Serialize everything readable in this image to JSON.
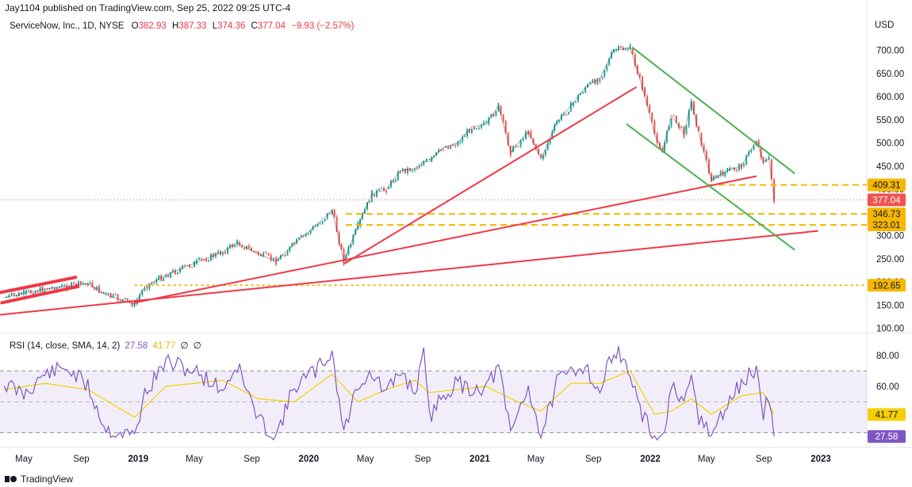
{
  "header": {
    "published": "Jay1104 published on TradingView.com, Sep 25, 2022 09:25 UTC-4"
  },
  "legend": {
    "symbol": "ServiceNow, Inc., 1D, NYSE",
    "open_label": "O",
    "open": "382.93",
    "high_label": "H",
    "high": "387.33",
    "low_label": "L",
    "low": "374.36",
    "close_label": "C",
    "close": "377.04",
    "change": "−9.93 (−2.57%)"
  },
  "rsi_legend": {
    "label": "RSI (14, close, SMA, 14, 2)",
    "rsi": "27.58",
    "sma": "41.77",
    "extra1": "∅",
    "extra2": "∅"
  },
  "footer": {
    "brand": "TradingView"
  },
  "colors": {
    "up": "#26a69a",
    "down": "#ef5350",
    "trendline": "#f23645",
    "channel": "#4caf50",
    "level": "#f5b800",
    "rsi": "#7e57c2",
    "rsi_sma": "#f5d000",
    "rsi_band": "#7e57c2"
  },
  "chart_data": [
    {
      "type": "line",
      "title": "ServiceNow, Inc., 1D, NYSE",
      "currency": "USD",
      "x_ticks": [
        "May",
        "Sep",
        "2019",
        "May",
        "Sep",
        "2020",
        "May",
        "Sep",
        "2021",
        "May",
        "Sep",
        "2022",
        "May",
        "Sep",
        "2023"
      ],
      "y_ticks": [
        100,
        150,
        200,
        250,
        300,
        350,
        400,
        450,
        500,
        550,
        600,
        650,
        700
      ],
      "ylim": [
        80,
        730
      ],
      "grid": false,
      "series": [
        {
          "name": "NOW",
          "dates": [
            "2018-03-20",
            "2018-05-01",
            "2018-06-15",
            "2018-08-01",
            "2018-09-15",
            "2018-10-24",
            "2018-12-24",
            "2019-01-15",
            "2019-03-01",
            "2019-05-01",
            "2019-07-01",
            "2019-08-01",
            "2019-09-15",
            "2019-10-23",
            "2019-12-01",
            "2020-01-15",
            "2020-02-20",
            "2020-03-16",
            "2020-04-15",
            "2020-05-15",
            "2020-06-15",
            "2020-07-15",
            "2020-08-15",
            "2020-09-03",
            "2020-09-15",
            "2020-10-15",
            "2020-11-15",
            "2020-12-15",
            "2021-01-15",
            "2021-02-10",
            "2021-03-08",
            "2021-04-15",
            "2021-05-12",
            "2021-06-15",
            "2021-07-15",
            "2021-08-15",
            "2021-09-15",
            "2021-10-15",
            "2021-11-19",
            "2021-12-15",
            "2022-01-10",
            "2022-01-27",
            "2022-02-15",
            "2022-03-14",
            "2022-03-30",
            "2022-04-15",
            "2022-05-12",
            "2022-06-15",
            "2022-07-15",
            "2022-08-16",
            "2022-08-31",
            "2022-09-12",
            "2022-09-23"
          ],
          "close": [
            166,
            175,
            185,
            190,
            197,
            172,
            152,
            190,
            215,
            240,
            265,
            285,
            260,
            245,
            282,
            320,
            355,
            245,
            320,
            390,
            400,
            440,
            445,
            460,
            460,
            490,
            500,
            535,
            540,
            580,
            480,
            525,
            465,
            545,
            580,
            620,
            640,
            700,
            705,
            620,
            520,
            480,
            560,
            520,
            590,
            520,
            420,
            440,
            450,
            505,
            460,
            465,
            377
          ]
        }
      ],
      "price_labels": [
        {
          "label": "409.31",
          "value": 409.31,
          "style": "level"
        },
        {
          "label": "377.04",
          "value": 377.04,
          "style": "last"
        },
        {
          "label": "346.73",
          "value": 346.73,
          "style": "level"
        },
        {
          "label": "323.01",
          "value": 323.01,
          "style": "level"
        },
        {
          "label": "192.65",
          "value": 192.65,
          "style": "level"
        }
      ],
      "horizontal_levels": [
        409.31,
        346.73,
        323.01,
        192.65
      ],
      "trendlines": [
        {
          "color": "red",
          "from": [
            "2018-03-01",
            175
          ],
          "to": [
            "2018-08-20",
            210
          ]
        },
        {
          "color": "red",
          "from": [
            "2018-03-15",
            155
          ],
          "to": [
            "2018-08-25",
            190
          ]
        },
        {
          "color": "red",
          "from": [
            "2018-03-01",
            128
          ],
          "to": [
            "2022-12-25",
            310
          ]
        },
        {
          "color": "red",
          "from": [
            "2018-12-24",
            155
          ],
          "to": [
            "2022-08-15",
            428
          ]
        },
        {
          "color": "red",
          "from": [
            "2020-03-18",
            240
          ],
          "to": [
            "2021-12-01",
            620
          ]
        },
        {
          "color": "green",
          "from": [
            "2021-11-25",
            705
          ],
          "to": [
            "2022-11-05",
            435
          ]
        },
        {
          "color": "green",
          "from": [
            "2021-11-12",
            540
          ],
          "to": [
            "2022-11-05",
            270
          ]
        }
      ]
    },
    {
      "type": "line",
      "title": "RSI (14, close, SMA, 14, 2)",
      "y_ticks": [
        80,
        60
      ],
      "ylim": [
        16,
        92
      ],
      "bands": [
        70,
        50,
        30
      ],
      "price_labels": [
        {
          "label": "41.77",
          "value": 41.77,
          "style": "sma"
        },
        {
          "label": "27.58",
          "value": 27.58,
          "style": "rsi"
        }
      ],
      "series": [
        {
          "name": "RSI",
          "dates": [
            "2018-03-20",
            "2018-05-01",
            "2018-06-15",
            "2018-08-01",
            "2018-09-15",
            "2018-10-24",
            "2018-12-24",
            "2019-01-15",
            "2019-03-01",
            "2019-05-01",
            "2019-07-01",
            "2019-08-01",
            "2019-09-15",
            "2019-10-23",
            "2019-12-01",
            "2020-01-15",
            "2020-02-20",
            "2020-03-16",
            "2020-04-15",
            "2020-05-15",
            "2020-06-15",
            "2020-07-15",
            "2020-08-15",
            "2020-09-03",
            "2020-09-15",
            "2020-10-15",
            "2020-11-15",
            "2020-12-15",
            "2021-01-15",
            "2021-02-10",
            "2021-03-08",
            "2021-04-15",
            "2021-05-12",
            "2021-06-15",
            "2021-07-15",
            "2021-08-15",
            "2021-09-15",
            "2021-10-15",
            "2021-11-19",
            "2021-12-15",
            "2022-01-10",
            "2022-01-27",
            "2022-02-15",
            "2022-03-14",
            "2022-03-30",
            "2022-04-15",
            "2022-05-12",
            "2022-06-15",
            "2022-07-15",
            "2022-08-16",
            "2022-08-31",
            "2022-09-12",
            "2022-09-23"
          ],
          "values": [
            62,
            55,
            68,
            72,
            60,
            32,
            28,
            55,
            76,
            70,
            58,
            74,
            38,
            28,
            60,
            70,
            82,
            30,
            62,
            68,
            55,
            70,
            56,
            80,
            40,
            55,
            62,
            58,
            60,
            72,
            30,
            60,
            28,
            62,
            70,
            74,
            55,
            86,
            68,
            40,
            28,
            25,
            60,
            45,
            66,
            40,
            28,
            48,
            62,
            72,
            40,
            55,
            27.58
          ]
        },
        {
          "name": "SMA",
          "dates": [
            "2018-03-20",
            "2018-06-15",
            "2018-09-15",
            "2018-12-24",
            "2019-03-01",
            "2019-07-01",
            "2019-09-15",
            "2019-12-01",
            "2020-02-20",
            "2020-04-15",
            "2020-06-15",
            "2020-08-15",
            "2020-09-15",
            "2020-11-15",
            "2021-01-15",
            "2021-03-08",
            "2021-05-12",
            "2021-07-15",
            "2021-09-15",
            "2021-11-19",
            "2022-01-10",
            "2022-02-15",
            "2022-03-30",
            "2022-05-12",
            "2022-07-15",
            "2022-08-31",
            "2022-09-23"
          ],
          "values": [
            58,
            62,
            58,
            40,
            60,
            64,
            52,
            50,
            68,
            50,
            58,
            64,
            56,
            58,
            60,
            52,
            44,
            62,
            62,
            70,
            42,
            44,
            52,
            42,
            54,
            56,
            41.77
          ]
        }
      ]
    }
  ]
}
